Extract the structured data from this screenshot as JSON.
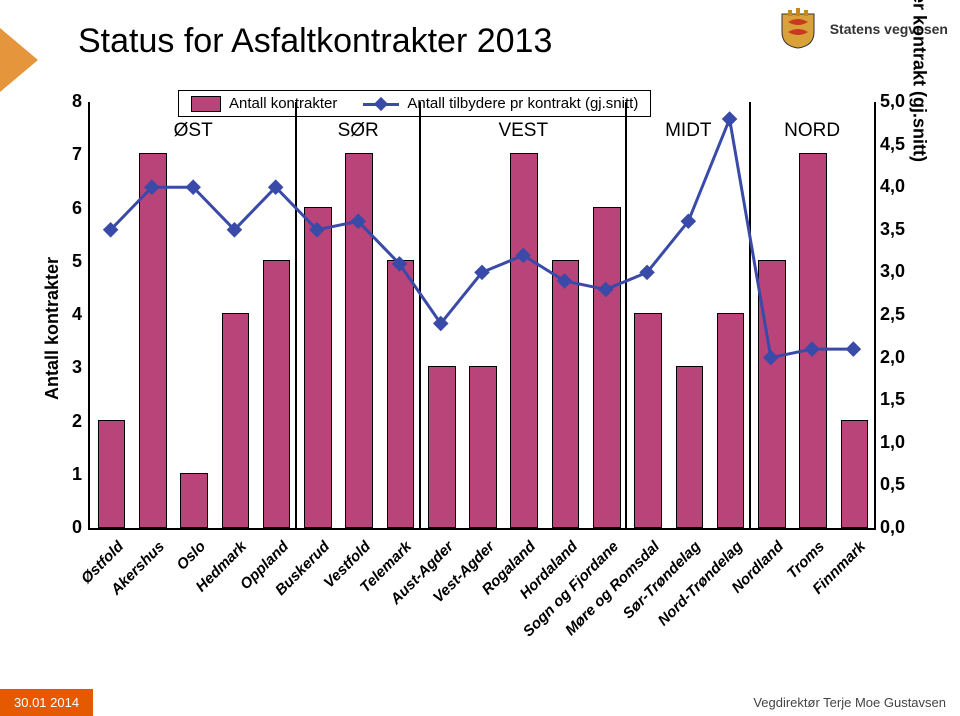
{
  "title": "Status for Asfaltkontrakter 2013",
  "footer_date": "30.01 2014",
  "footer_right": "Vegdirektør Terje Moe Gustavsen",
  "logo_text": "Statens vegvesen",
  "accent_color": "#e5963c",
  "chart": {
    "type": "bar+line",
    "legend": {
      "bar_label": "Antall kontrakter",
      "line_label": "Antall tilbydere pr kontrakt (gj.snitt)"
    },
    "left_axis": {
      "label": "Antall kontrakter",
      "min": 0,
      "max": 8,
      "step": 1,
      "ticks": [
        "0",
        "1",
        "2",
        "3",
        "4",
        "5",
        "6",
        "7",
        "8"
      ],
      "font_size": 18
    },
    "right_axis": {
      "label": "Tilbydere per kontrakt (gj.snitt)",
      "min": 0,
      "max": 5,
      "step": 0.5,
      "ticks": [
        "0,0",
        "0,5",
        "1,0",
        "1,5",
        "2,0",
        "2,5",
        "3,0",
        "3,5",
        "4,0",
        "4,5",
        "5,0"
      ],
      "font_size": 18
    },
    "bar_color": "#b8447a",
    "bar_border": "#000000",
    "line_color": "#3a4aa8",
    "line_width": 3,
    "marker_size": 11,
    "plot_bg": "#ffffff",
    "categories": [
      "Østfold",
      "Akershus",
      "Oslo",
      "Hedmark",
      "Oppland",
      "Buskerud",
      "Vestfold",
      "Telemark",
      "Aust-Agder",
      "Vest-Agder",
      "Rogaland",
      "Hordaland",
      "Sogn og Fjordane",
      "Møre og Romsdal",
      "Sør-Trøndelag",
      "Nord-Trøndelag",
      "Nordland",
      "Troms",
      "Finnmark"
    ],
    "bar_values": [
      2,
      7,
      1,
      4,
      5,
      6,
      7,
      5,
      3,
      3,
      7,
      5,
      6,
      4,
      3,
      4,
      5,
      7,
      2
    ],
    "line_values": [
      3.5,
      4.0,
      4.0,
      3.5,
      4.0,
      3.5,
      3.6,
      3.1,
      2.4,
      3.0,
      3.2,
      2.9,
      2.8,
      3.0,
      3.6,
      4.8,
      2.0,
      2.1,
      2.1
    ],
    "region_boundaries": [
      5,
      8,
      13,
      16
    ],
    "region_names": [
      "ØST",
      "SØR",
      "VEST",
      "MIDT",
      "NORD"
    ],
    "region_positions": [
      2.5,
      6.5,
      10.5,
      14.5,
      17.5
    ]
  },
  "logo_colors": {
    "shield": "#d9a13a",
    "crown": "#c8861e",
    "red": "#c83a1e",
    "stroke": "#333"
  }
}
